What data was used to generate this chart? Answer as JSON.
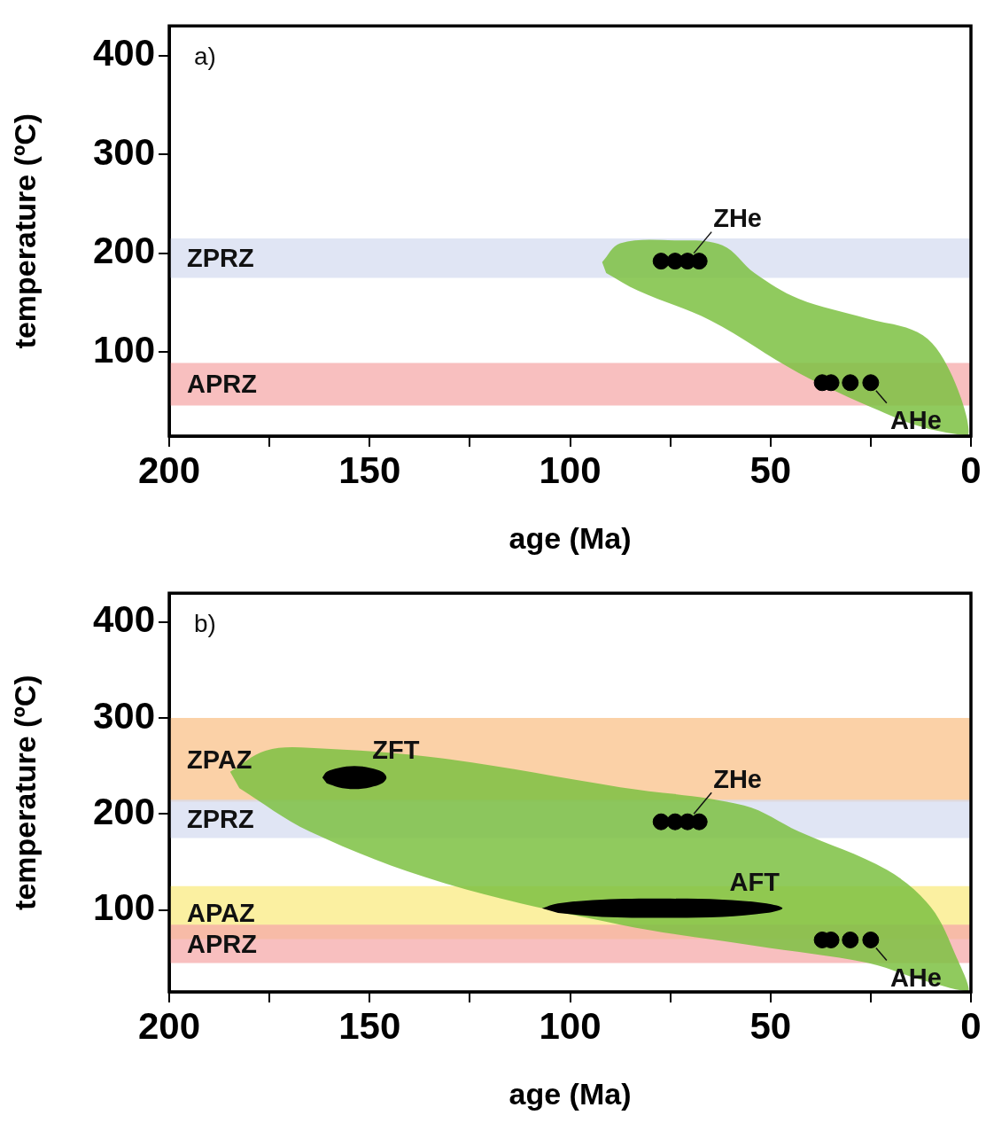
{
  "chart_data": [
    {
      "type": "scatter",
      "xlabel": "age (Ma)",
      "ylabel": "temperature (ºC)",
      "xlim": [
        200,
        0
      ],
      "xticks": [
        200,
        {
          "value": 175,
          "label": null
        },
        150,
        {
          "value": 125,
          "label": null
        },
        100,
        {
          "value": 75,
          "label": null
        },
        50,
        {
          "value": 25,
          "label": null
        },
        0
      ],
      "ylim": [
        15,
        430
      ],
      "yticks": [
        100,
        200,
        300,
        400
      ],
      "grid": false,
      "legend": false,
      "annotations": [
        "a)"
      ],
      "bands": [
        {
          "axis": "y",
          "from": 175,
          "to": 215,
          "label": "ZPRZ",
          "color": "#d5dcf0"
        },
        {
          "axis": "y",
          "from": 46,
          "to": 89,
          "label": "APRZ",
          "color": "#f5aaaa"
        }
      ],
      "series": [
        {
          "type": "area",
          "color": "#7dc142",
          "x": [
            92,
            87.5,
            74,
            62,
            54,
            43,
            26,
            12,
            4.6,
            0.7,
            12,
            23,
            43,
            65,
            83,
            91
          ],
          "values": [
            191,
            210,
            213,
            208,
            180,
            154,
            134,
            117,
            75,
            16,
            24,
            41,
            79,
            132,
            162,
            180
          ]
        },
        {
          "type": "scatter",
          "name": "ZHe",
          "color": "#000000",
          "marker": "circle",
          "x": [
            77.3,
            73.8,
            70.7,
            67.8
          ],
          "values": [
            192,
            192,
            192,
            192
          ]
        },
        {
          "type": "scatter",
          "name": "AHe",
          "color": "#000000",
          "marker": "circle",
          "x": [
            37.1,
            34.9,
            30.1,
            25
          ],
          "values": [
            69,
            69,
            69,
            69
          ]
        }
      ]
    },
    {
      "type": "scatter",
      "xlabel": "age (Ma)",
      "ylabel": "temperature (ºC)",
      "xlim": [
        200,
        0
      ],
      "xticks": [
        200,
        {
          "value": 175,
          "label": null
        },
        150,
        {
          "value": 125,
          "label": null
        },
        100,
        {
          "value": 75,
          "label": null
        },
        50,
        {
          "value": 25,
          "label": null
        },
        0
      ],
      "ylim": [
        15,
        430
      ],
      "yticks": [
        100,
        200,
        300,
        400
      ],
      "grid": false,
      "legend": false,
      "annotations": [
        "b)"
      ],
      "bands": [
        {
          "axis": "y",
          "from": 213,
          "to": 300,
          "label": "ZPAZ",
          "color": "#fac28a"
        },
        {
          "axis": "y",
          "from": 175,
          "to": 215,
          "label": "ZPRZ",
          "color": "#d5dcf0"
        },
        {
          "axis": "y",
          "from": 70,
          "to": 125,
          "label": "APAZ",
          "color": "#faeb82"
        },
        {
          "axis": "y",
          "from": 45,
          "to": 85,
          "label": "APRZ",
          "color": "#f5aaaa"
        }
      ],
      "series": [
        {
          "type": "area",
          "color": "#7dc142",
          "x": [
            184.8,
            176,
            165,
            132,
            87.5,
            56.6,
            43,
            21,
            10,
            3.5,
            0.7,
            12,
            25.6,
            54,
            87.5,
            132,
            165,
            182.5
          ],
          "values": [
            244,
            266,
            269,
            258,
            228,
            209,
            182,
            142,
            103,
            50,
            16,
            27,
            45,
            63,
            85,
            129,
            182,
            227
          ]
        },
        {
          "type": "area",
          "name": "ZFT",
          "color": "#000000",
          "x": [
            161.8,
            160.7,
            157.8,
            153.8,
            149.8,
            146.9,
            145.8,
            146.9,
            149.8,
            153.8,
            157.8,
            160.7
          ],
          "values": [
            238,
            244,
            248,
            250,
            248,
            244,
            238,
            232,
            228,
            226,
            228,
            232
          ]
        },
        {
          "type": "area",
          "name": "AFT",
          "color": "#000000",
          "x": [
            107,
            103,
            92,
            77,
            62,
            51,
            47,
            51,
            62,
            77,
            92,
            103
          ],
          "values": [
            102,
            107,
            111,
            112,
            111,
            107,
            102,
            97,
            93,
            92,
            93,
            97
          ]
        },
        {
          "type": "scatter",
          "name": "ZHe",
          "color": "#000000",
          "marker": "circle",
          "x": [
            77.3,
            73.8,
            70.7,
            67.8
          ],
          "values": [
            192,
            192,
            192,
            192
          ]
        },
        {
          "type": "scatter",
          "name": "AHe",
          "color": "#000000",
          "marker": "circle",
          "x": [
            37.1,
            34.9,
            30.1,
            25
          ],
          "values": [
            69,
            69,
            69,
            69
          ]
        }
      ]
    }
  ]
}
